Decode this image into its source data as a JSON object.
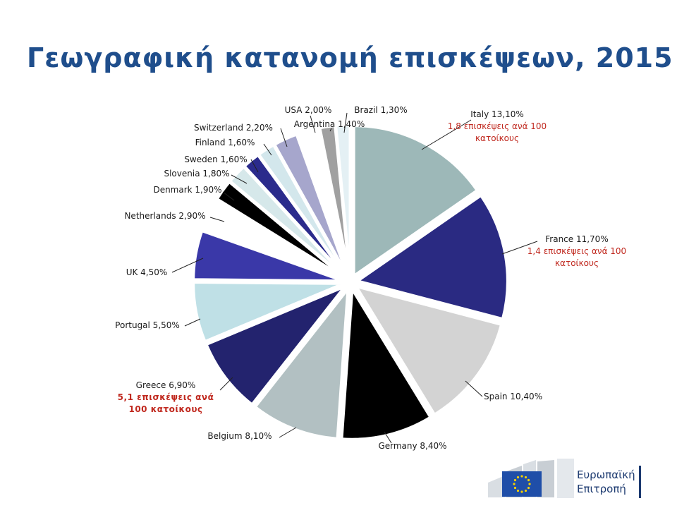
{
  "title": "Γεωγραφική κατανομή επισκέψεων, 2015",
  "logo": {
    "line1": "Ευρωπαϊκή",
    "line2": "Επιτροπή"
  },
  "chart_data": {
    "type": "pie",
    "title": "Γεωγραφική κατανομή επισκέψεων, 2015",
    "series": [
      {
        "label": "Italy 13,10%",
        "value": 13.1,
        "color": "#9db8b8",
        "note": [
          "1,8 επισκέψεις ανά 100",
          "κατοίκους"
        ]
      },
      {
        "label": "France 11,70%",
        "value": 11.7,
        "color": "#2a2a82",
        "note": [
          "1,4 επισκέψεις ανά 100",
          "κατοίκους"
        ]
      },
      {
        "label": "Spain 10,40%",
        "value": 10.4,
        "color": "#d3d3d3"
      },
      {
        "label": "Germany 8,40%",
        "value": 8.4,
        "color": "#000000"
      },
      {
        "label": "Belgium 8,10%",
        "value": 8.1,
        "color": "#b2c0c2"
      },
      {
        "label": "Greece 6,90%",
        "value": 6.9,
        "color": "#23236e",
        "note": [
          "5,1 επισκέψεις ανά",
          "100 κατοίκους"
        ]
      },
      {
        "label": "Portugal 5,50%",
        "value": 5.5,
        "color": "#bfe0e6"
      },
      {
        "label": "UK 4,50%",
        "value": 4.5,
        "color": "#3a38a8"
      },
      {
        "label": "Netherlands 2,90%",
        "value": 2.9,
        "color": "#ffffff"
      },
      {
        "label": "Denmark 1,90%",
        "value": 1.9,
        "color": "#000000"
      },
      {
        "label": "Slovenia 1,80%",
        "value": 1.8,
        "color": "#d6e8ea"
      },
      {
        "label": "Sweden 1,60%",
        "value": 1.6,
        "color": "#2b2b8c"
      },
      {
        "label": "Finland 1,60%",
        "value": 1.6,
        "color": "#d3e7ec"
      },
      {
        "label": "Switzerland 2,20%",
        "value": 2.2,
        "color": "#a6a6cc"
      },
      {
        "label": "USA 2,00%",
        "value": 2.0,
        "color": "#ffffff"
      },
      {
        "label": "Argentina 1,40%",
        "value": 1.4,
        "color": "#a0a0a0"
      },
      {
        "label": "Brazil 1,30%",
        "value": 1.3,
        "color": "#e4f0f4"
      }
    ]
  }
}
